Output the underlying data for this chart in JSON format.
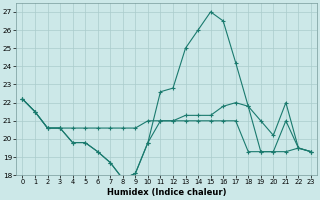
{
  "xlabel": "Humidex (Indice chaleur)",
  "bg_color": "#cce8e8",
  "grid_color": "#aacccc",
  "line_color": "#1a7a6e",
  "xlim": [
    -0.5,
    23.5
  ],
  "ylim": [
    18,
    27.5
  ],
  "yticks": [
    18,
    19,
    20,
    21,
    22,
    23,
    24,
    25,
    26,
    27
  ],
  "xticks": [
    0,
    1,
    2,
    3,
    4,
    5,
    6,
    7,
    8,
    9,
    10,
    11,
    12,
    13,
    14,
    15,
    16,
    17,
    18,
    19,
    20,
    21,
    22,
    23
  ],
  "series": [
    [
      22.2,
      21.5,
      20.6,
      20.6,
      19.8,
      19.8,
      19.3,
      18.7,
      17.8,
      18.1,
      19.8,
      22.6,
      22.8,
      25.0,
      26.0,
      27.0,
      26.5,
      24.2,
      21.8,
      21.0,
      20.2,
      22.0,
      19.5,
      19.3
    ],
    [
      22.2,
      21.5,
      20.6,
      20.6,
      20.6,
      20.6,
      20.6,
      20.6,
      20.6,
      20.6,
      21.0,
      21.0,
      21.0,
      21.3,
      21.3,
      21.3,
      21.8,
      22.0,
      21.8,
      19.3,
      19.3,
      21.0,
      19.5,
      19.3
    ],
    [
      22.2,
      21.5,
      20.6,
      20.6,
      19.8,
      19.8,
      19.3,
      18.7,
      17.8,
      18.1,
      19.8,
      21.0,
      21.0,
      21.0,
      21.0,
      21.0,
      21.0,
      21.0,
      19.3,
      19.3,
      19.3,
      19.3,
      19.5,
      19.3
    ]
  ]
}
